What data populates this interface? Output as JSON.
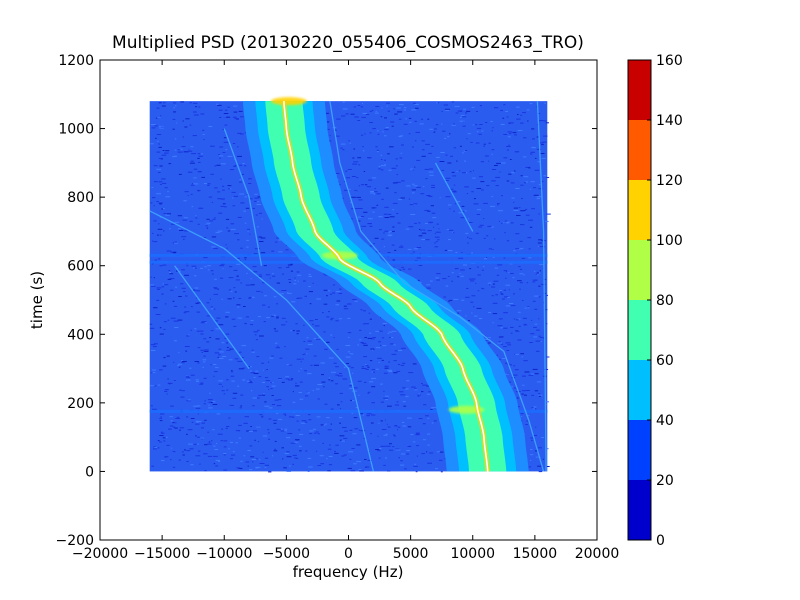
{
  "chart_data": {
    "type": "heatmap",
    "title": "Multiplied PSD (20130220_055406_COSMOS2463_TRO)",
    "xlabel": "frequency (Hz)",
    "ylabel": "time (s)",
    "xlim": [
      -20000,
      20000
    ],
    "ylim": [
      -200,
      1200
    ],
    "xticks": [
      -20000,
      -15000,
      -10000,
      -5000,
      0,
      5000,
      10000,
      15000,
      20000
    ],
    "xtick_labels": [
      "−20000",
      "−15000",
      "−10000",
      "−5000",
      "0",
      "5000",
      "10000",
      "15000",
      "20000"
    ],
    "yticks": [
      -200,
      0,
      200,
      400,
      600,
      800,
      1000,
      1200
    ],
    "ytick_labels": [
      "−200",
      "0",
      "200",
      "400",
      "600",
      "800",
      "1000",
      "1200"
    ],
    "data_extent": {
      "x": [
        -16000,
        16000
      ],
      "y": [
        0,
        1080
      ]
    },
    "grid": false,
    "colormap": "jet",
    "colorbar": {
      "range": [
        0,
        160
      ],
      "levels": [
        0,
        20,
        40,
        60,
        80,
        100,
        120,
        140,
        160
      ],
      "tick_labels": [
        "0",
        "20",
        "40",
        "60",
        "80",
        "100",
        "120",
        "140",
        "160"
      ],
      "colors": [
        "#0000cc",
        "#0040ff",
        "#00bfff",
        "#40ffb0",
        "#b0ff46",
        "#ffd200",
        "#ff5a00",
        "#c80000"
      ]
    },
    "background_level_color": "#2a5cf0",
    "horizontal_bands_s": [
      175,
      610,
      630
    ],
    "main_trace": {
      "description_points": [
        {
          "t": 1080,
          "f": -5200
        },
        {
          "t": 1000,
          "f": -5000
        },
        {
          "t": 900,
          "f": -4500
        },
        {
          "t": 800,
          "f": -3800
        },
        {
          "t": 700,
          "f": -2700
        },
        {
          "t": 620,
          "f": -700
        },
        {
          "t": 550,
          "f": 2500
        },
        {
          "t": 480,
          "f": 5000
        },
        {
          "t": 400,
          "f": 7500
        },
        {
          "t": 300,
          "f": 9200
        },
        {
          "t": 200,
          "f": 10300
        },
        {
          "t": 100,
          "f": 10900
        },
        {
          "t": 0,
          "f": 11200
        }
      ],
      "envelope_halfwidths_hz": {
        "green": 1500,
        "cyan": 2300,
        "light_blue": 3300
      },
      "peak_level": 100
    },
    "hot_spots": [
      {
        "t": 1080,
        "f": -4800,
        "level": 100
      },
      {
        "t": 180,
        "f": 9500,
        "level": 90
      },
      {
        "t": 630,
        "f": -700,
        "level": 90
      }
    ],
    "faint_traces": [
      {
        "name": "",
        "points": [
          {
            "t": 760,
            "f": -16000
          },
          {
            "t": 650,
            "f": -10000
          },
          {
            "t": 500,
            "f": -5000
          },
          {
            "t": 300,
            "f": 0
          },
          {
            "t": 0,
            "f": 2000
          }
        ]
      },
      {
        "name": "",
        "points": [
          {
            "t": 1080,
            "f": -1500
          },
          {
            "t": 900,
            "f": -700
          },
          {
            "t": 700,
            "f": 1000
          },
          {
            "t": 550,
            "f": 4500
          },
          {
            "t": 450,
            "f": 9000
          },
          {
            "t": 350,
            "f": 12500
          },
          {
            "t": 150,
            "f": 14500
          },
          {
            "t": 0,
            "f": 15700
          }
        ]
      },
      {
        "name": "",
        "points": [
          {
            "t": 1000,
            "f": -10000
          },
          {
            "t": 800,
            "f": -8000
          },
          {
            "t": 600,
            "f": -7000
          }
        ]
      },
      {
        "name": "",
        "points": [
          {
            "t": 900,
            "f": 7000
          },
          {
            "t": 800,
            "f": 8500
          },
          {
            "t": 700,
            "f": 10000
          }
        ]
      },
      {
        "name": "",
        "points": [
          {
            "t": 600,
            "f": -14000
          },
          {
            "t": 450,
            "f": -11000
          },
          {
            "t": 300,
            "f": -8000
          }
        ]
      },
      {
        "name": "",
        "points": [
          {
            "t": 1080,
            "f": 15200
          },
          {
            "t": 700,
            "f": 15700
          },
          {
            "t": 0,
            "f": 15900
          }
        ]
      }
    ]
  }
}
